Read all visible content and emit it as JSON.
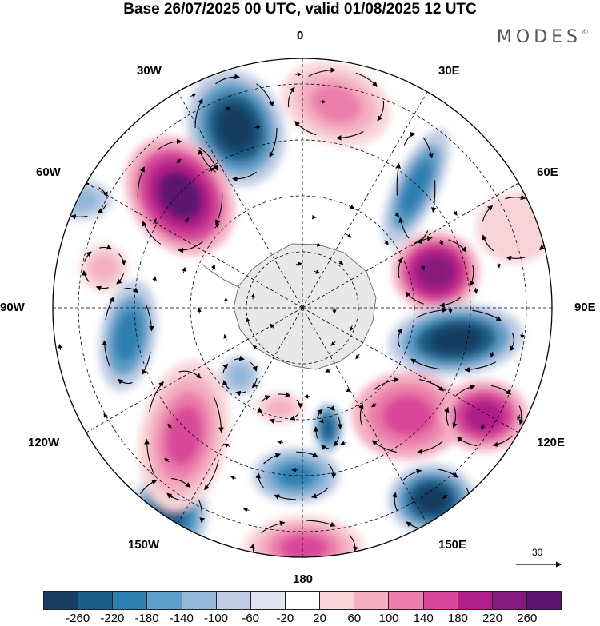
{
  "header": {
    "title": "Base 26/07/2025 00 UTC, valid 01/08/2025 12 UTC",
    "brand": "MODES",
    "brand_mark": "©"
  },
  "map": {
    "projection": "south-polar-stereographic",
    "longitude_labels": {
      "top": "0",
      "top_right": "30E",
      "right_upper": "60E",
      "right": "90E",
      "right_lower": "120E",
      "bottom_right": "150E",
      "bottom": "180",
      "bottom_left": "150W",
      "left_lower": "120W",
      "left": "90W",
      "left_upper": "60W",
      "top_left": "30W"
    },
    "vector_scale": "30"
  },
  "legend": {
    "ticks": [
      "-260",
      "-220",
      "-180",
      "-140",
      "-100",
      "-60",
      "-20",
      "20",
      "60",
      "100",
      "140",
      "180",
      "220",
      "260"
    ],
    "colors": [
      "#173e60",
      "#1f5e89",
      "#2f7fb0",
      "#5f9ec8",
      "#93b7d8",
      "#c0cde4",
      "#e1e4f0",
      "#ffffff",
      "#f8d4d8",
      "#f4afc2",
      "#eb7eaa",
      "#d9479a",
      "#b01f88",
      "#871a7e",
      "#5c126e"
    ]
  }
}
